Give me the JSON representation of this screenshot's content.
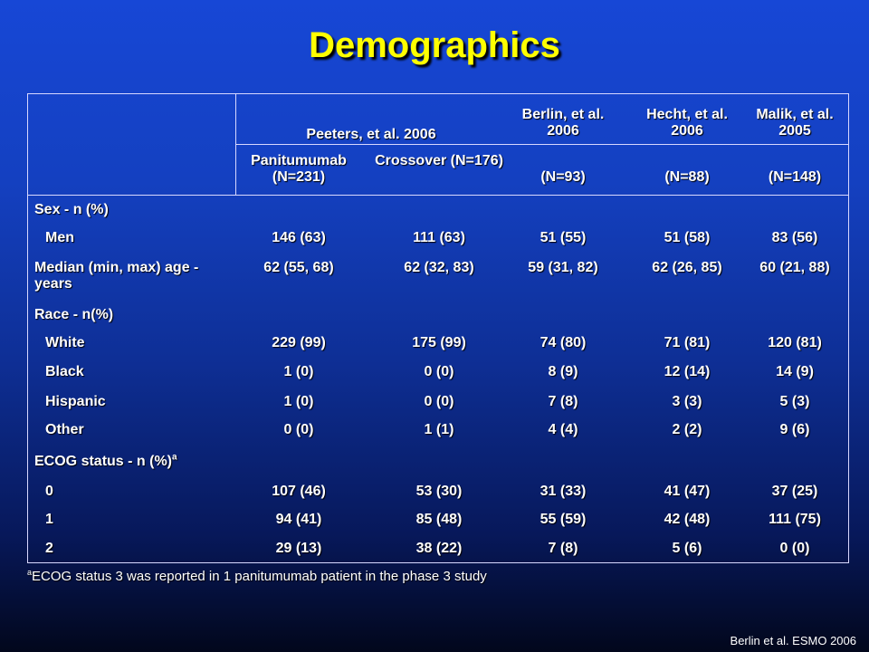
{
  "title": "Demographics",
  "table": {
    "study_headers": {
      "peeters": "Peeters, et al. 2006",
      "berlin": "Berlin, et al. 2006",
      "hecht": "Hecht, et al. 2006",
      "malik": "Malik, et al. 2005"
    },
    "sub_headers": [
      "Panitumumab (N=231)",
      "Crossover (N=176)",
      "(N=93)",
      "(N=88)",
      "(N=148)"
    ],
    "rows": [
      {
        "label": "Sex - n (%)",
        "values": [
          "",
          "",
          "",
          "",
          ""
        ]
      },
      {
        "label": "Men",
        "values": [
          "146 (63)",
          "111 (63)",
          "51 (55)",
          "51 (58)",
          "83 (56)"
        ]
      },
      {
        "label": "Median (min, max) age -  years",
        "values": [
          "62 (55, 68)",
          "62 (32, 83)",
          "59 (31, 82)",
          "62 (26, 85)",
          "60 (21, 88)"
        ]
      },
      {
        "label": "Race - n(%)",
        "values": [
          "",
          "",
          "",
          "",
          ""
        ]
      },
      {
        "label": "White",
        "values": [
          "229 (99)",
          "175 (99)",
          "74 (80)",
          "71 (81)",
          "120 (81)"
        ]
      },
      {
        "label": "Black",
        "values": [
          "1 (0)",
          "0 (0)",
          "8 (9)",
          "12 (14)",
          "14 (9)"
        ]
      },
      {
        "label": "Hispanic",
        "values": [
          "1 (0)",
          "0 (0)",
          "7 (8)",
          "3 (3)",
          "5 (3)"
        ]
      },
      {
        "label": "Other",
        "values": [
          "0 (0)",
          "1 (1)",
          "4 (4)",
          "2 (2)",
          "9 (6)"
        ]
      },
      {
        "label": "ECOG status - n (%)",
        "sup": "a",
        "values": [
          "",
          "",
          "",
          "",
          ""
        ]
      },
      {
        "label": "0",
        "values": [
          "107 (46)",
          "53 (30)",
          "31 (33)",
          "41 (47)",
          "37 (25)"
        ]
      },
      {
        "label": "1",
        "values": [
          "94 (41)",
          "85 (48)",
          "55 (59)",
          "42 (48)",
          "111 (75)"
        ]
      },
      {
        "label": "2",
        "values": [
          "29 (13)",
          "38 (22)",
          "7 (8)",
          "5 (6)",
          "0 (0)"
        ]
      }
    ]
  },
  "footnote": {
    "sup": "a",
    "text": "ECOG status 3 was reported in 1 panitumumab patient in the phase 3 study"
  },
  "credit": "Berlin et al. ESMO 2006"
}
